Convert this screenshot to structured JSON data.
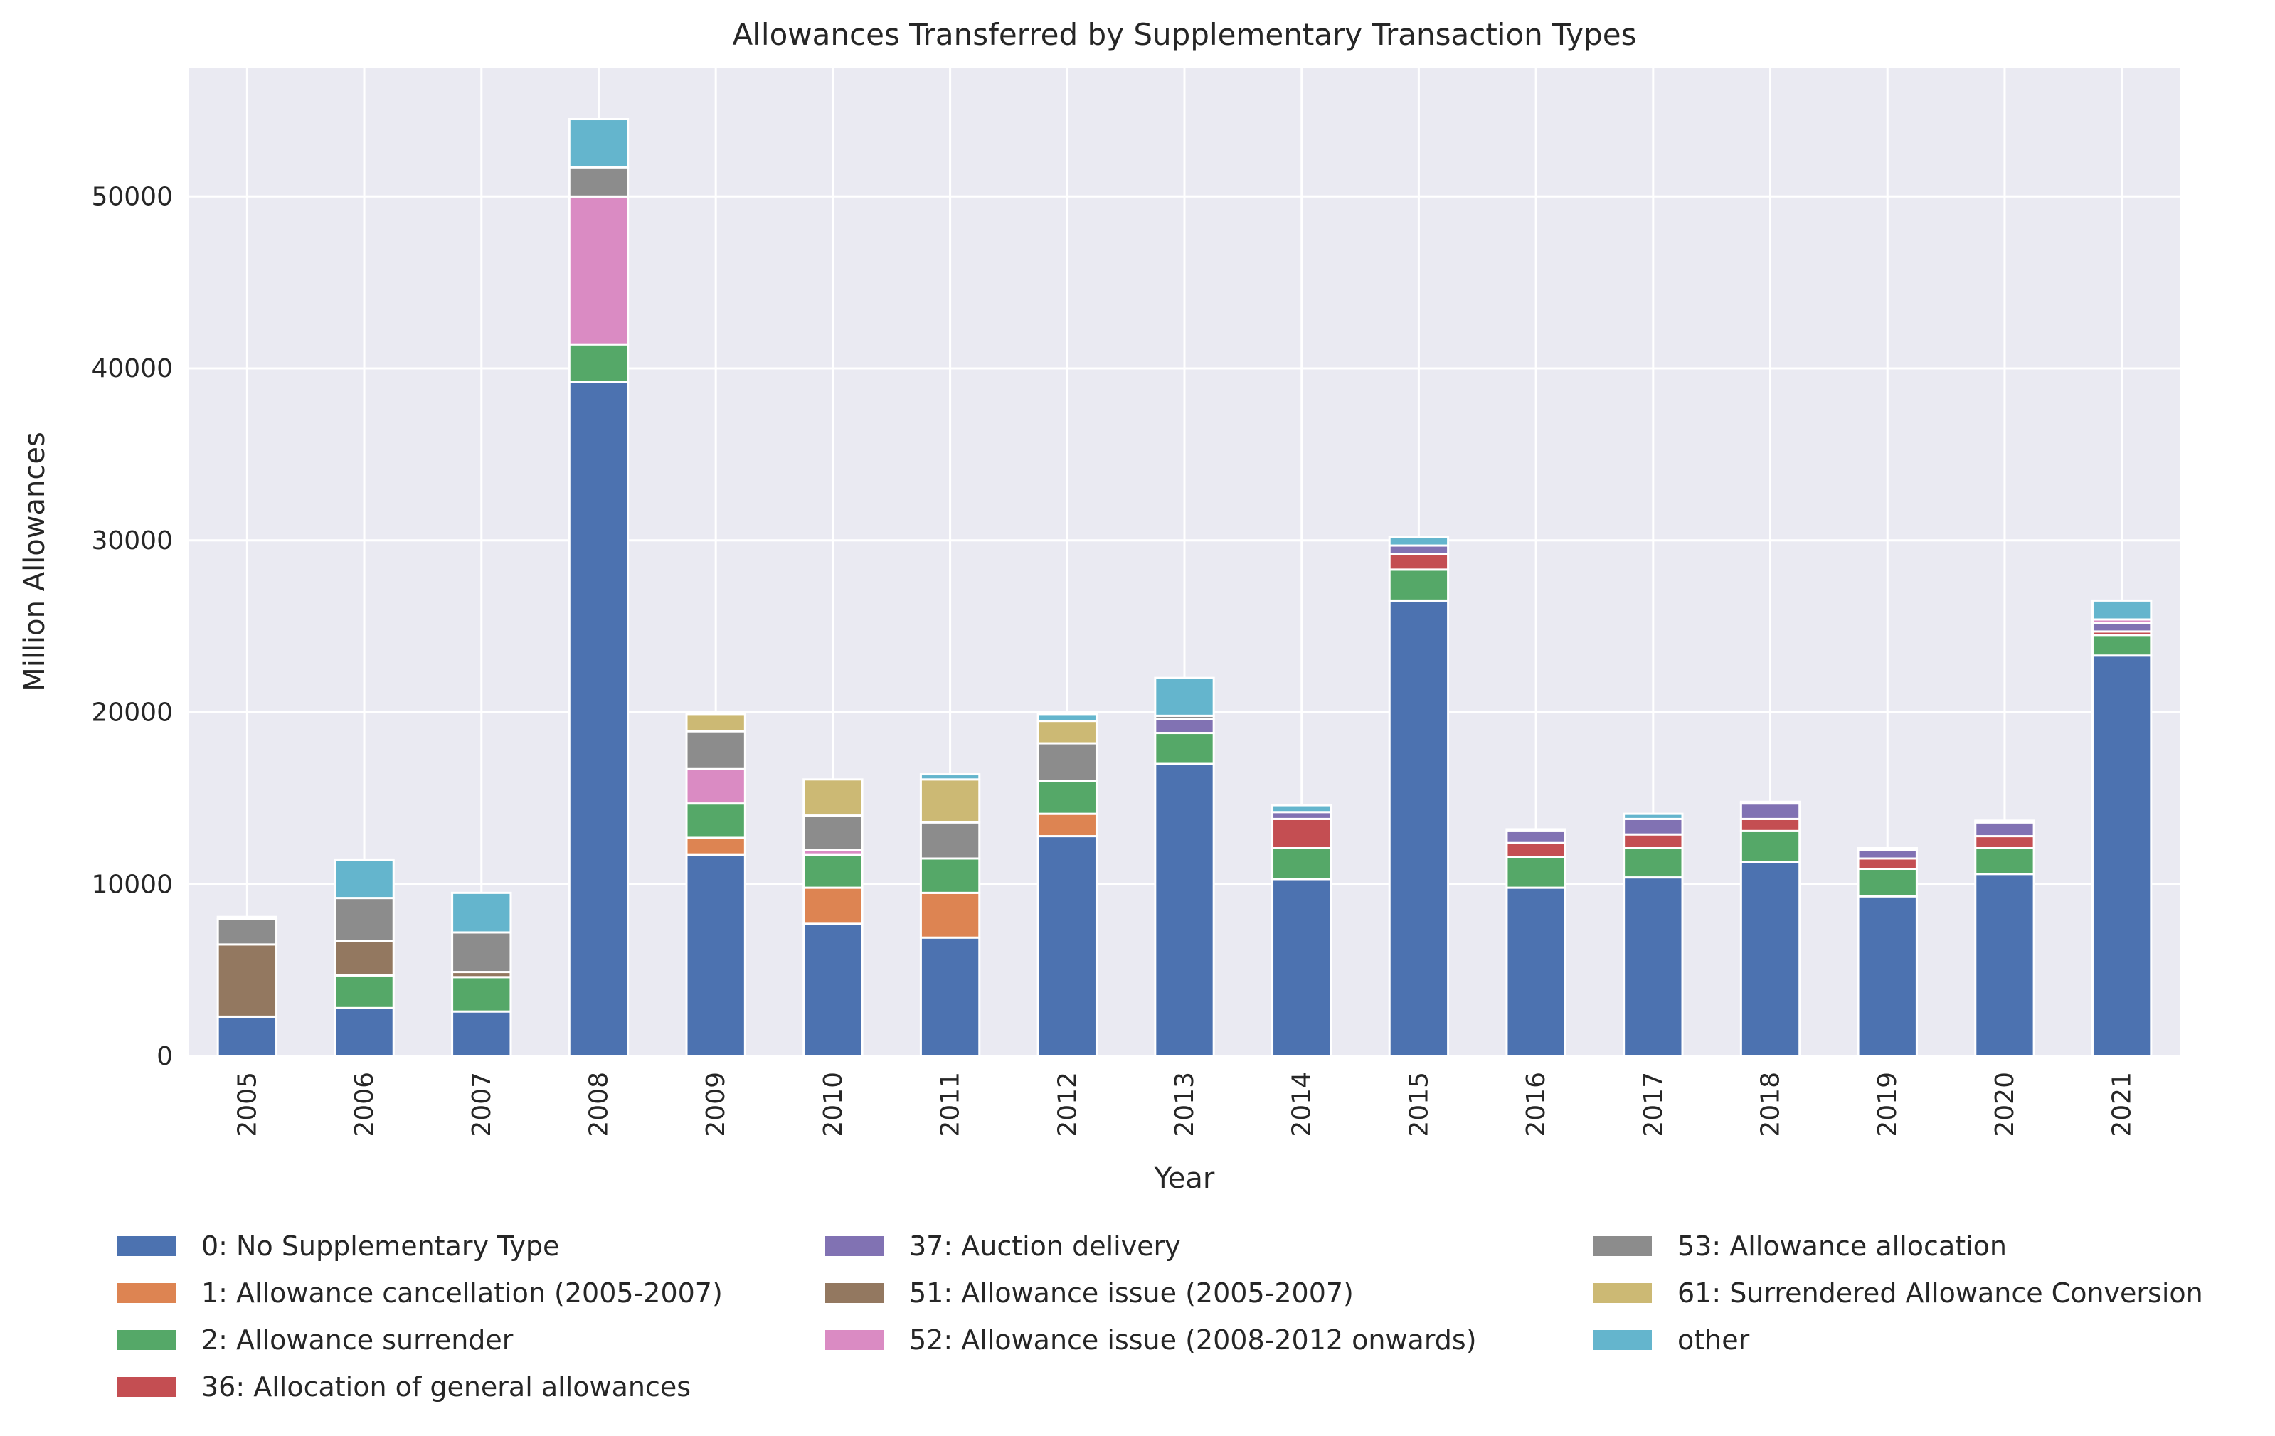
{
  "chart_data": {
    "type": "bar",
    "stacked": true,
    "title": "Allowances Transferred by Supplementary Transaction Types",
    "xlabel": "Year",
    "ylabel": "Million Allowances",
    "ylim": [
      0,
      57500
    ],
    "yticks": [
      0,
      10000,
      20000,
      30000,
      40000,
      50000
    ],
    "ytick_labels": [
      "0",
      "10000",
      "20000",
      "30000",
      "40000",
      "50000"
    ],
    "grid": true,
    "legend_position": "bottom",
    "categories": [
      "2005",
      "2006",
      "2007",
      "2008",
      "2009",
      "2010",
      "2011",
      "2012",
      "2013",
      "2014",
      "2015",
      "2016",
      "2017",
      "2018",
      "2019",
      "2020",
      "2021"
    ],
    "series": [
      {
        "name": "0: No Supplementary Type",
        "color": "#4c72b0",
        "values": [
          2300,
          2800,
          2600,
          39200,
          11700,
          7700,
          6900,
          12800,
          17000,
          10300,
          26500,
          9800,
          10400,
          11300,
          9300,
          10600,
          23300
        ]
      },
      {
        "name": "1: Allowance cancellation (2005-2007)",
        "color": "#dd8452",
        "values": [
          0,
          0,
          0,
          0,
          1000,
          2100,
          2600,
          1300,
          0,
          0,
          0,
          0,
          0,
          0,
          0,
          0,
          0
        ]
      },
      {
        "name": "2: Allowance surrender",
        "color": "#55a868",
        "values": [
          0,
          1900,
          2000,
          2200,
          2000,
          1900,
          2000,
          1900,
          1800,
          1800,
          1800,
          1800,
          1700,
          1800,
          1600,
          1500,
          1200
        ]
      },
      {
        "name": "36: Allocation of general allowances",
        "color": "#c44e52",
        "values": [
          0,
          0,
          0,
          0,
          0,
          0,
          0,
          0,
          0,
          1700,
          900,
          800,
          800,
          700,
          600,
          700,
          200
        ]
      },
      {
        "name": "37: Auction delivery",
        "color": "#8172b3",
        "values": [
          0,
          0,
          0,
          0,
          0,
          0,
          0,
          0,
          800,
          400,
          500,
          700,
          900,
          900,
          500,
          800,
          500
        ]
      },
      {
        "name": "51: Allowance issue (2005-2007)",
        "color": "#937860",
        "values": [
          4200,
          2000,
          300,
          0,
          0,
          0,
          0,
          0,
          0,
          0,
          0,
          0,
          0,
          0,
          0,
          0,
          0
        ]
      },
      {
        "name": "52: Allowance issue (2008-2012 onwards)",
        "color": "#da8bc3",
        "values": [
          0,
          0,
          0,
          8600,
          2000,
          300,
          0,
          0,
          0,
          0,
          0,
          0,
          0,
          0,
          0,
          0,
          200
        ]
      },
      {
        "name": "53: Allowance allocation",
        "color": "#8c8c8c",
        "values": [
          1500,
          2500,
          2300,
          1700,
          2200,
          2000,
          2100,
          2200,
          200,
          0,
          0,
          0,
          0,
          0,
          0,
          0,
          0
        ]
      },
      {
        "name": "61: Surrendered Allowance Conversion",
        "color": "#ccb974",
        "values": [
          0,
          0,
          0,
          0,
          1000,
          2100,
          2500,
          1300,
          0,
          0,
          0,
          0,
          0,
          0,
          0,
          0,
          0
        ]
      },
      {
        "name": "other",
        "color": "#64b5cd",
        "values": [
          100,
          2200,
          2300,
          2800,
          0,
          0,
          300,
          400,
          2200,
          400,
          500,
          100,
          300,
          100,
          100,
          100,
          1100
        ]
      }
    ]
  }
}
